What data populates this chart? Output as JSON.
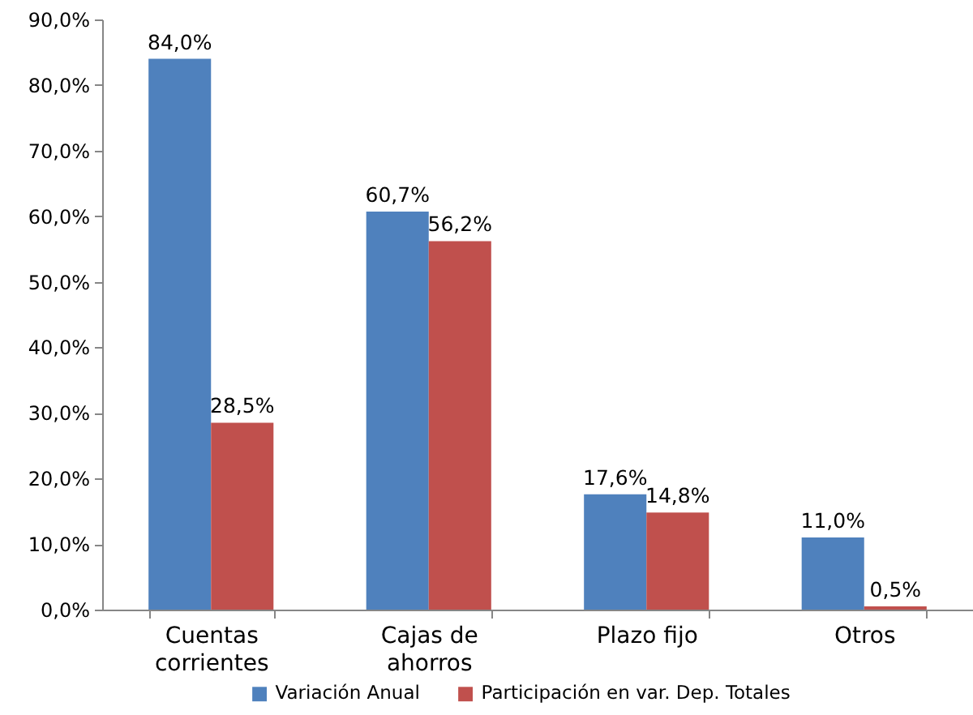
{
  "chart_data": {
    "type": "bar",
    "categories": [
      "Cuentas corrientes",
      "Cajas de ahorros",
      "Plazo fijo",
      "Otros"
    ],
    "series": [
      {
        "name": "Variación Anual",
        "color": "#4f81bd",
        "values": [
          84.0,
          60.7,
          17.6,
          11.0
        ],
        "value_labels": [
          "84,0%",
          "60,7%",
          "17,6%",
          "11,0%"
        ]
      },
      {
        "name": "Participación en var. Dep. Totales",
        "color": "#c0504d",
        "values": [
          28.5,
          56.2,
          14.8,
          0.5
        ],
        "value_labels": [
          "28,5%",
          "56,2%",
          "14,8%",
          "0,5%"
        ]
      }
    ],
    "ylim": [
      0,
      90
    ],
    "yticks": [
      {
        "value": 0,
        "label": "0,0%"
      },
      {
        "value": 10,
        "label": "10,0%"
      },
      {
        "value": 20,
        "label": "20,0%"
      },
      {
        "value": 30,
        "label": "30,0%"
      },
      {
        "value": 40,
        "label": "40,0%"
      },
      {
        "value": 50,
        "label": "50,0%"
      },
      {
        "value": 60,
        "label": "60,0%"
      },
      {
        "value": 70,
        "label": "70,0%"
      },
      {
        "value": 80,
        "label": "80,0%"
      },
      {
        "value": 90,
        "label": "90,0%"
      }
    ],
    "grid": false,
    "legend": "bottom"
  }
}
